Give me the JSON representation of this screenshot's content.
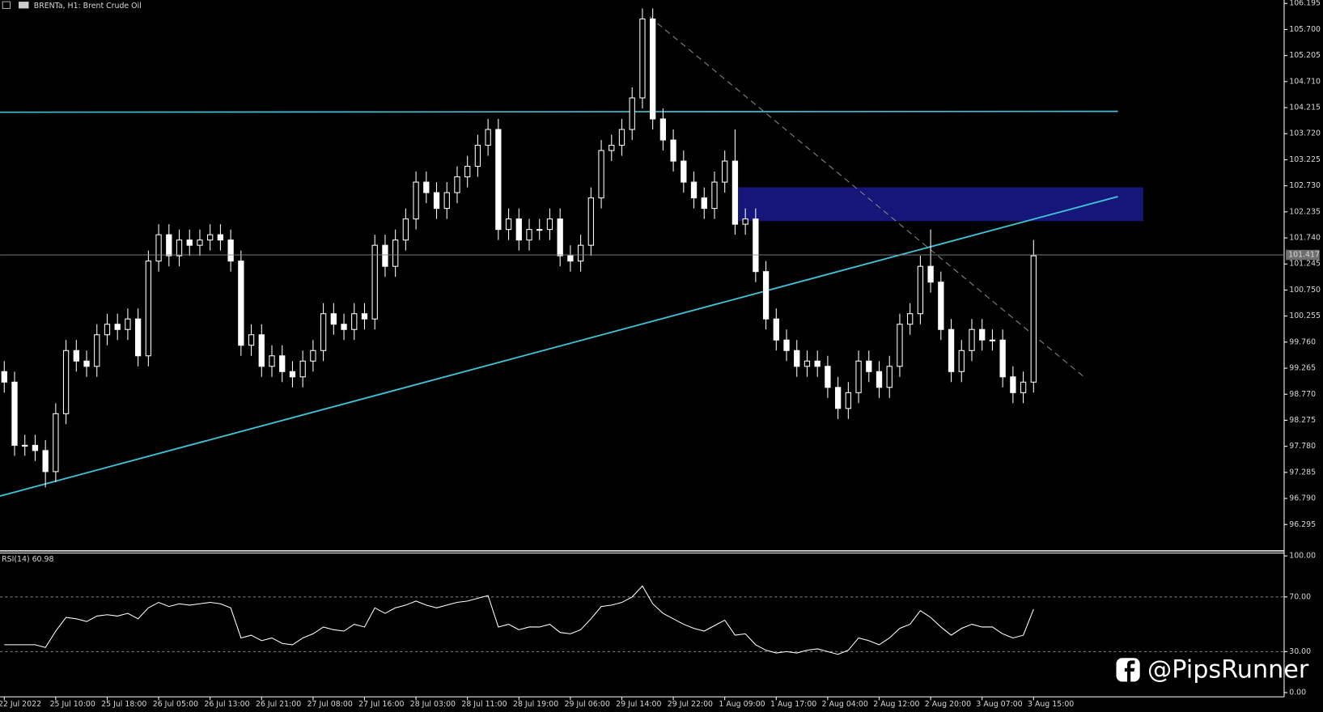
{
  "header": "BRENTa, H1:  Brent Crude Oil",
  "watermark": "@PipsRunner",
  "chart_data": [
    {
      "type": "candlestick",
      "categories": [
        "22 Jul 2022",
        null,
        null,
        null,
        null,
        "25 Jul 10:00",
        null,
        null,
        null,
        null,
        "25 Jul 18:00",
        null,
        null,
        null,
        null,
        "26 Jul 05:00",
        null,
        null,
        null,
        null,
        "26 Jul 13:00",
        null,
        null,
        null,
        null,
        "26 Jul 21:00",
        null,
        null,
        null,
        null,
        "27 Jul 08:00",
        null,
        null,
        null,
        null,
        "27 Jul 16:00",
        null,
        null,
        null,
        null,
        "28 Jul 03:00",
        null,
        null,
        null,
        null,
        "28 Jul 11:00",
        null,
        null,
        null,
        null,
        "28 Jul 19:00",
        null,
        null,
        null,
        null,
        "29 Jul 06:00",
        null,
        null,
        null,
        null,
        "29 Jul 14:00",
        null,
        null,
        null,
        null,
        "29 Jul 22:00",
        null,
        null,
        null,
        null,
        "1 Aug 09:00",
        null,
        null,
        null,
        null,
        "1 Aug 17:00",
        null,
        null,
        null,
        null,
        "2 Aug 04:00",
        null,
        null,
        null,
        null,
        "2 Aug 12:00",
        null,
        null,
        null,
        null,
        "2 Aug 20:00",
        null,
        null,
        null,
        null,
        "3 Aug 07:00",
        null,
        null,
        null,
        null,
        "3 Aug 15:00"
      ],
      "open": [
        99.2,
        99.0,
        97.8,
        97.8,
        97.7,
        97.3,
        98.4,
        99.6,
        99.4,
        99.3,
        99.9,
        100.1,
        100.0,
        100.2,
        99.5,
        101.3,
        101.8,
        101.4,
        101.7,
        101.6,
        101.7,
        101.8,
        101.7,
        101.3,
        99.7,
        99.9,
        99.3,
        99.5,
        99.2,
        99.1,
        99.4,
        99.6,
        100.3,
        100.1,
        100.0,
        100.3,
        100.2,
        101.6,
        101.2,
        101.7,
        102.1,
        102.8,
        102.6,
        102.3,
        102.6,
        102.9,
        103.1,
        103.5,
        103.8,
        101.9,
        102.1,
        101.7,
        101.9,
        101.9,
        102.1,
        101.4,
        101.3,
        101.6,
        102.5,
        103.4,
        103.5,
        103.8,
        104.4,
        105.9,
        104.0,
        103.6,
        103.2,
        102.8,
        102.5,
        102.3,
        102.8,
        103.2,
        102.0,
        102.1,
        101.1,
        100.2,
        99.8,
        99.6,
        99.3,
        99.4,
        99.3,
        98.9,
        98.5,
        98.8,
        99.4,
        99.2,
        98.9,
        99.3,
        100.1,
        100.3,
        101.2,
        100.9,
        100.0,
        99.2,
        99.6,
        100.0,
        99.8,
        99.8,
        99.1,
        98.8,
        99.0
      ],
      "high": [
        99.4,
        99.2,
        98.0,
        98.0,
        97.9,
        98.6,
        99.8,
        99.8,
        99.6,
        100.1,
        100.3,
        100.3,
        100.4,
        100.4,
        101.5,
        102.0,
        102.0,
        101.9,
        101.9,
        101.9,
        102.0,
        102.0,
        101.9,
        101.5,
        100.1,
        100.1,
        99.7,
        99.7,
        99.4,
        99.6,
        99.8,
        100.5,
        100.5,
        100.3,
        100.5,
        100.5,
        101.8,
        101.8,
        101.9,
        102.3,
        103.0,
        103.0,
        102.8,
        102.8,
        103.1,
        103.3,
        103.7,
        104.0,
        104.0,
        102.3,
        102.3,
        102.1,
        102.1,
        102.3,
        102.3,
        101.6,
        101.8,
        102.7,
        103.6,
        103.7,
        104.0,
        104.6,
        106.1,
        106.1,
        104.2,
        103.8,
        103.4,
        103.0,
        102.7,
        103.0,
        103.4,
        103.8,
        102.3,
        102.3,
        101.3,
        100.4,
        100.0,
        99.8,
        99.6,
        99.6,
        99.5,
        99.1,
        99.0,
        99.6,
        99.6,
        99.4,
        99.5,
        100.3,
        100.5,
        101.4,
        101.9,
        101.1,
        100.2,
        99.8,
        100.2,
        100.2,
        100.0,
        100.0,
        99.3,
        99.2,
        101.7
      ],
      "low": [
        98.8,
        97.6,
        97.6,
        97.5,
        97.0,
        97.1,
        98.2,
        99.2,
        99.1,
        99.1,
        99.7,
        99.8,
        99.8,
        99.3,
        99.3,
        101.1,
        101.2,
        101.2,
        101.4,
        101.4,
        101.5,
        101.5,
        101.1,
        99.5,
        99.5,
        99.1,
        99.1,
        99.0,
        98.9,
        98.9,
        99.2,
        99.4,
        99.9,
        99.8,
        99.8,
        100.0,
        100.0,
        101.0,
        101.0,
        101.5,
        101.9,
        102.4,
        102.1,
        102.1,
        102.4,
        102.7,
        102.9,
        103.3,
        101.7,
        101.7,
        101.5,
        101.5,
        101.7,
        101.7,
        101.2,
        101.1,
        101.1,
        101.4,
        102.3,
        103.2,
        103.3,
        103.6,
        104.2,
        103.8,
        103.4,
        103.0,
        102.6,
        102.3,
        102.1,
        102.1,
        102.6,
        101.8,
        101.8,
        100.9,
        100.0,
        99.6,
        99.4,
        99.1,
        99.1,
        99.1,
        98.7,
        98.3,
        98.3,
        98.6,
        99.0,
        98.7,
        98.7,
        99.1,
        99.9,
        100.1,
        100.7,
        99.8,
        99.0,
        99.0,
        99.4,
        99.6,
        99.6,
        98.9,
        98.6,
        98.6,
        98.8
      ],
      "close": [
        99.0,
        97.8,
        97.8,
        97.7,
        97.3,
        98.4,
        99.6,
        99.4,
        99.3,
        99.9,
        100.1,
        100.0,
        100.2,
        99.5,
        101.3,
        101.8,
        101.4,
        101.7,
        101.6,
        101.7,
        101.8,
        101.7,
        101.3,
        99.7,
        99.9,
        99.3,
        99.5,
        99.2,
        99.1,
        99.4,
        99.6,
        100.3,
        100.1,
        100.0,
        100.3,
        100.2,
        101.6,
        101.2,
        101.7,
        102.1,
        102.8,
        102.6,
        102.3,
        102.6,
        102.9,
        103.1,
        103.5,
        103.8,
        101.9,
        102.1,
        101.7,
        101.9,
        101.9,
        102.1,
        101.4,
        101.3,
        101.6,
        102.5,
        103.4,
        103.5,
        103.8,
        104.4,
        105.9,
        104.0,
        103.6,
        103.2,
        102.8,
        102.5,
        102.3,
        102.8,
        103.2,
        102.0,
        102.1,
        101.1,
        100.2,
        99.8,
        99.6,
        99.3,
        99.4,
        99.3,
        98.9,
        98.5,
        98.8,
        99.4,
        99.2,
        98.9,
        99.3,
        100.1,
        100.3,
        101.2,
        100.9,
        100.0,
        99.2,
        99.6,
        100.0,
        99.8,
        99.8,
        99.1,
        98.8,
        99.0,
        101.4
      ],
      "current_price": 101.417,
      "color": "#ffffff",
      "ylim": [
        95.81,
        106.26
      ],
      "yticks": [
        106.195,
        {
          "value": 105.7,
          "label": "105.700"
        },
        105.205,
        {
          "value": 104.71,
          "label": "104.710"
        },
        104.215,
        {
          "value": 103.72,
          "label": "103.720"
        },
        103.225,
        {
          "value": 102.73,
          "label": "102.730"
        },
        102.235,
        {
          "value": 101.74,
          "label": "101.740"
        },
        101.245,
        {
          "value": 100.75,
          "label": "100.750"
        },
        100.255,
        {
          "value": 99.76,
          "label": "99.760"
        },
        99.265,
        {
          "value": 98.77,
          "label": "98.770"
        },
        98.275,
        {
          "value": 97.78,
          "label": "97.780"
        },
        97.285,
        {
          "value": 96.79,
          "label": "96.790"
        },
        96.295
      ]
    },
    {
      "type": "line",
      "title": "RSI(14) 60.98",
      "values": [
        35,
        35,
        35,
        35,
        33,
        45,
        55,
        54,
        52,
        56,
        57,
        56,
        58,
        54,
        62,
        66,
        63,
        65,
        64,
        65,
        66,
        65,
        62,
        40,
        42,
        38,
        40,
        36,
        35,
        40,
        43,
        48,
        46,
        45,
        50,
        48,
        62,
        58,
        62,
        64,
        67,
        64,
        62,
        64,
        66,
        67,
        69,
        71,
        48,
        50,
        46,
        48,
        48,
        50,
        44,
        43,
        46,
        54,
        63,
        64,
        66,
        70,
        78,
        65,
        58,
        54,
        50,
        47,
        45,
        49,
        53,
        42,
        43,
        35,
        31,
        29,
        30,
        29,
        31,
        32,
        30,
        28,
        31,
        40,
        38,
        35,
        40,
        47,
        50,
        60,
        55,
        48,
        42,
        47,
        50,
        48,
        48,
        43,
        40,
        42,
        61
      ],
      "color": "#ffffff",
      "ylim": [
        0,
        100
      ],
      "yticks": [
        {
          "value": 100,
          "label": "100.00"
        },
        {
          "value": 70,
          "label": "70.00"
        },
        {
          "value": 30,
          "label": "30.00"
        },
        {
          "value": 0,
          "label": "0.00"
        }
      ]
    }
  ]
}
